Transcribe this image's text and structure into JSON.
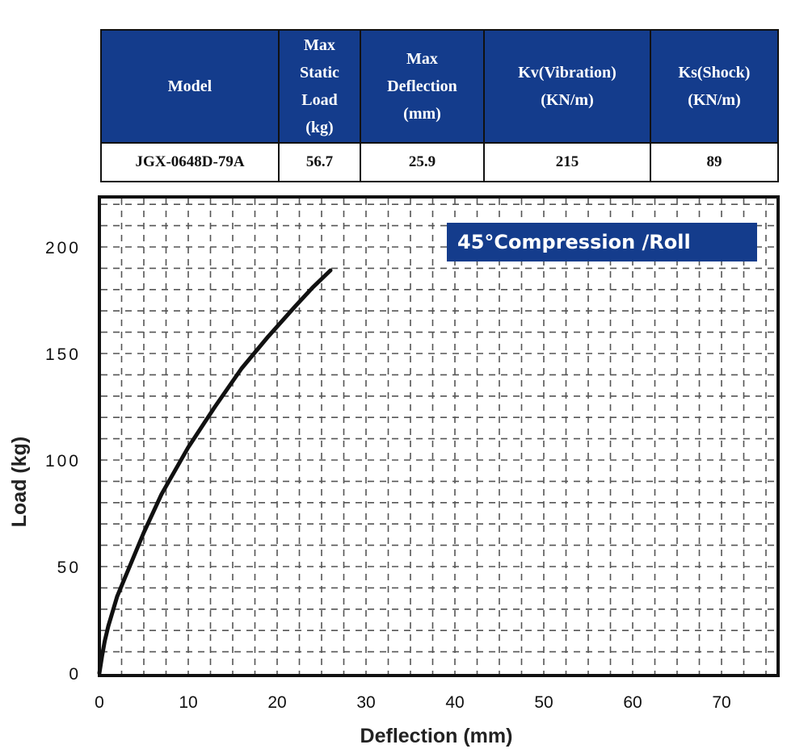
{
  "table": {
    "headers": [
      [
        "Model"
      ],
      [
        "Max",
        "Static",
        "Load",
        "(kg)"
      ],
      [
        "Max",
        "Deflection",
        "(mm)"
      ],
      [
        "Kv(Vibration)",
        "(KN/m)"
      ],
      [
        "Ks(Shock)",
        "(KN/m)"
      ]
    ],
    "row": [
      "JGX-0648D-79A",
      "56.7",
      "25.9",
      "215",
      "89"
    ]
  },
  "chart_data": {
    "type": "line",
    "title": "45°Compression /Roll",
    "xlabel": "Deflection (mm)",
    "ylabel": "Load (kg)",
    "xlim": [
      0,
      76
    ],
    "ylim": [
      0,
      220
    ],
    "xticks": [
      "0",
      "10",
      "20",
      "30",
      "40",
      "50",
      "60",
      "70"
    ],
    "yticks": [
      "0",
      "50",
      "100",
      "150",
      "200"
    ],
    "grid": true,
    "series": [
      {
        "color": "#111111",
        "x": [
          0,
          0.3,
          0.6,
          1,
          2,
          3,
          5,
          7,
          10,
          13,
          16,
          19,
          22,
          24,
          26
        ],
        "y": [
          0,
          8,
          15,
          22,
          36,
          46,
          66,
          84,
          106,
          125,
          143,
          158,
          172,
          181,
          189
        ]
      }
    ]
  }
}
